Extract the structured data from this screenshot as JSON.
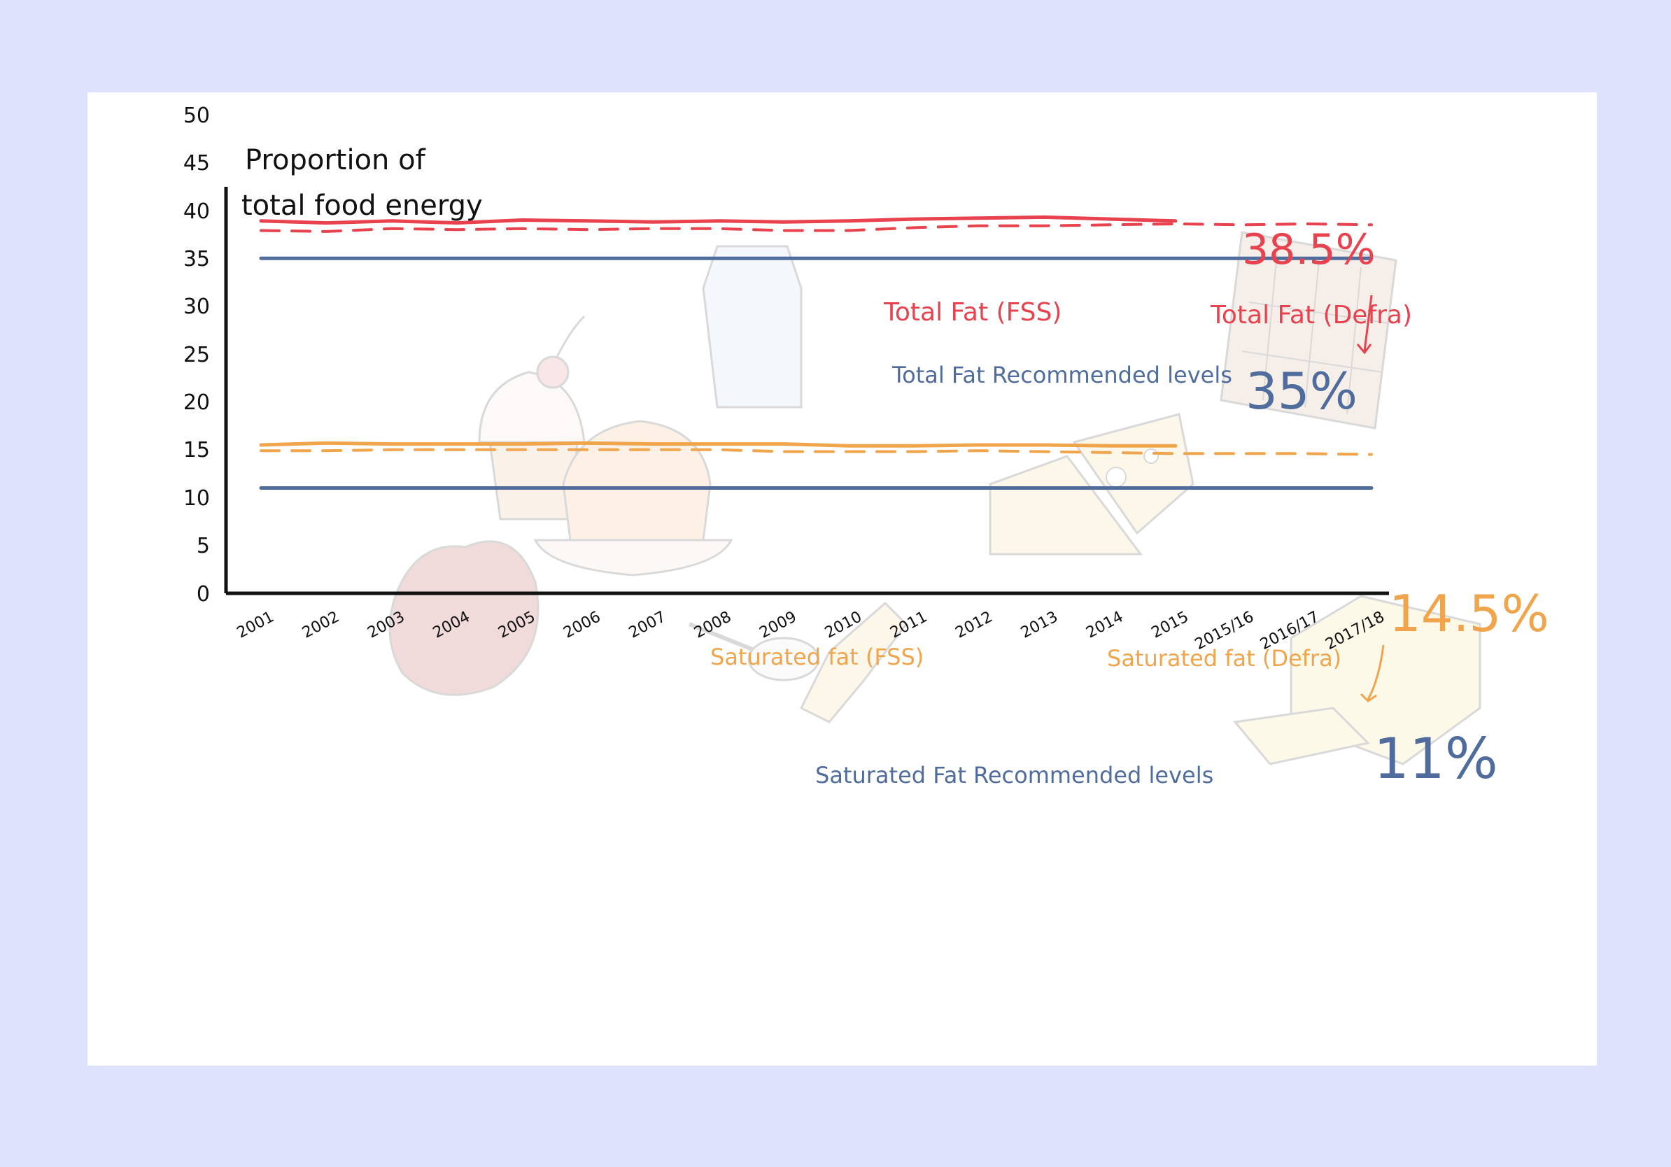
{
  "chart_data": {
    "type": "line",
    "title": "",
    "ylabel_line1": "Proportion of",
    "ylabel_line2": "total food energy",
    "xlabel": "",
    "ylim": [
      0,
      50
    ],
    "yticks": [
      "0",
      "5",
      "10",
      "15",
      "20",
      "25",
      "30",
      "35",
      "40",
      "45",
      "50"
    ],
    "categories": [
      "2001",
      "2002",
      "2003",
      "2004",
      "2005",
      "2006",
      "2007",
      "2008",
      "2009",
      "2010",
      "2011",
      "2012",
      "2013",
      "2014",
      "2015",
      "2015/16",
      "2016/17",
      "2017/18"
    ],
    "grid": false,
    "series": [
      {
        "key": "tf_fss",
        "name": "Total Fat (FSS)",
        "color": "#e8424f",
        "style": "solid",
        "values": [
          38.9,
          38.7,
          38.9,
          38.7,
          39.0,
          38.9,
          38.8,
          38.9,
          38.8,
          38.9,
          39.1,
          39.2,
          39.3,
          39.1,
          38.9,
          null,
          null,
          null
        ]
      },
      {
        "key": "tf_defra",
        "name": "Total Fat (Defra)",
        "color": "#e8424f",
        "style": "dashed",
        "values": [
          37.9,
          37.8,
          38.1,
          38.0,
          38.1,
          38.0,
          38.1,
          38.1,
          37.9,
          37.9,
          38.2,
          38.4,
          38.4,
          38.5,
          38.6,
          38.5,
          38.6,
          38.5
        ]
      },
      {
        "key": "tf_rec",
        "name": "Total Fat Recommended levels",
        "color": "#506c9c",
        "style": "solid",
        "values": [
          35,
          35,
          35,
          35,
          35,
          35,
          35,
          35,
          35,
          35,
          35,
          35,
          35,
          35,
          35,
          35,
          35,
          35
        ]
      },
      {
        "key": "sf_fss",
        "name": "Saturated fat (FSS)",
        "color": "#f0a54d",
        "style": "solid",
        "values": [
          15.5,
          15.7,
          15.6,
          15.6,
          15.6,
          15.7,
          15.6,
          15.6,
          15.6,
          15.4,
          15.4,
          15.5,
          15.5,
          15.4,
          15.4,
          null,
          null,
          null
        ]
      },
      {
        "key": "sf_defra",
        "name": "Saturated fat (Defra)",
        "color": "#f0a54d",
        "style": "dashed",
        "values": [
          14.9,
          14.9,
          15.0,
          15.0,
          15.0,
          15.0,
          15.0,
          15.0,
          14.8,
          14.8,
          14.8,
          14.9,
          14.8,
          14.7,
          14.6,
          14.6,
          14.6,
          14.5
        ]
      },
      {
        "key": "sf_rec",
        "name": "Saturated Fat Recommended levels",
        "color": "#506c9c",
        "style": "solid",
        "values": [
          11,
          11,
          11,
          11,
          11,
          11,
          11,
          11,
          11,
          11,
          11,
          11,
          11,
          11,
          11,
          11,
          11,
          11
        ]
      }
    ],
    "annotations": [
      {
        "text": "38.5%",
        "color": "#e8424f"
      },
      {
        "text": "35%",
        "color": "#506c9c"
      },
      {
        "text": "14.5%",
        "color": "#f0a54d"
      },
      {
        "text": "11%",
        "color": "#506c9c"
      }
    ]
  },
  "labels": {
    "tf_fss": "Total Fat (FSS)",
    "tf_defra": "Total Fat (Defra)",
    "tf_rec": "Total Fat Recommended levels",
    "sf_fss": "Saturated fat (FSS)",
    "sf_defra": "Saturated fat (Defra)",
    "sf_rec": "Saturated Fat Recommended levels",
    "big_tf_defra": "38.5%",
    "big_tf_rec": "35%",
    "big_sf_defra": "14.5%",
    "big_sf_rec": "11%"
  },
  "colors": {
    "background": "#dfe2fd",
    "card": "#ffffff",
    "axis": "#111111",
    "red": "#e8424f",
    "orange": "#f0a54d",
    "blue": "#506c9c"
  },
  "icons": [
    "cupcake-icon",
    "milk-carton-icon",
    "chocolate-bar-icon",
    "cheese-icon",
    "pudding-icon",
    "steak-icon",
    "oil-bottle-icon",
    "butter-icon",
    "spoon-icon"
  ]
}
